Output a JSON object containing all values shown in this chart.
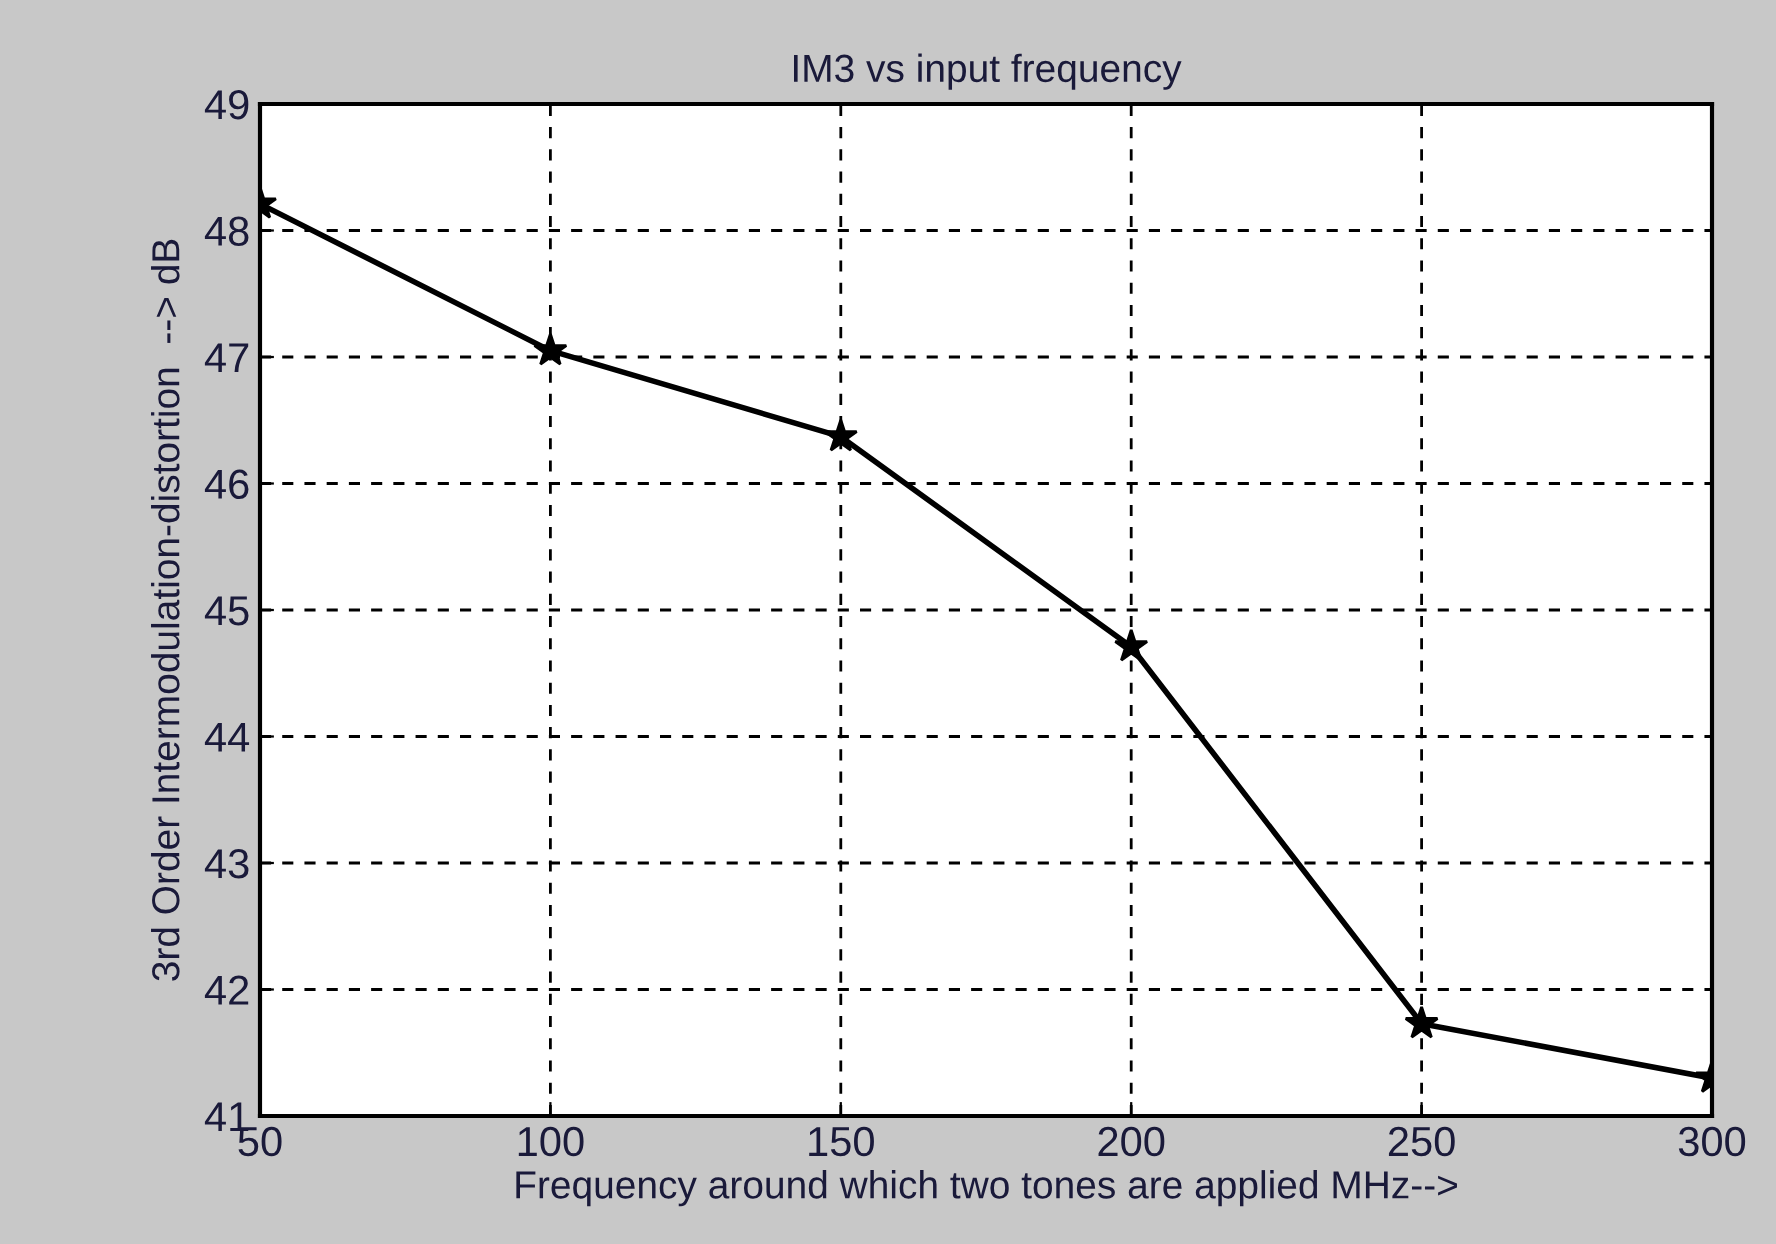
{
  "chart_data": {
    "type": "line",
    "title": "IM3 vs input frequency",
    "xlabel": "Frequency around which two tones are applied MHz-->",
    "ylabel": "3rd Order Intermodulation-distortion  --> dB",
    "x": [
      50,
      100,
      150,
      200,
      250,
      300
    ],
    "series": [
      {
        "color": "#000000",
        "values": [
          48.21,
          47.05,
          46.37,
          44.71,
          41.73,
          41.3
        ]
      }
    ],
    "xlim": [
      50,
      300
    ],
    "xticks": [
      50,
      100,
      150,
      200,
      250,
      300
    ],
    "ylim": [
      41,
      49
    ],
    "yticks": [
      41,
      42,
      43,
      44,
      45,
      46,
      47,
      48,
      49
    ],
    "grid": true,
    "marker": "star",
    "line_style": "solid"
  }
}
